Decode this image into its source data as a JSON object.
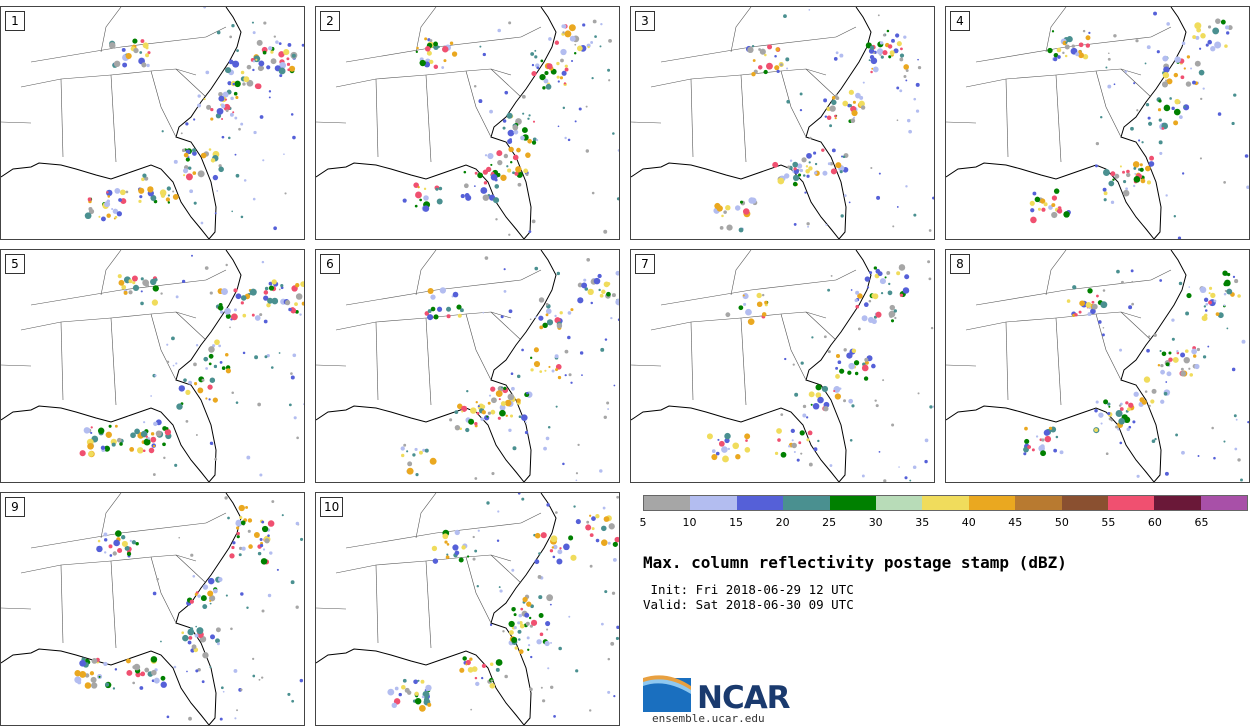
{
  "panels": [
    {
      "label": "1"
    },
    {
      "label": "2"
    },
    {
      "label": "3"
    },
    {
      "label": "4"
    },
    {
      "label": "5"
    },
    {
      "label": "6"
    },
    {
      "label": "7"
    },
    {
      "label": "8"
    },
    {
      "label": "9"
    },
    {
      "label": "10"
    }
  ],
  "colorbar": {
    "colors": [
      "#a6a6a6",
      "#b3bdf0",
      "#5560d8",
      "#4a9090",
      "#008000",
      "#b8dcb8",
      "#f0dc5c",
      "#eaa820",
      "#b87a30",
      "#8a5030",
      "#f05070",
      "#6a1838",
      "#a850a8"
    ],
    "ticks": [
      "5",
      "10",
      "15",
      "20",
      "25",
      "30",
      "35",
      "40",
      "45",
      "50",
      "55",
      "60",
      "65"
    ]
  },
  "title": "Max. column reflectivity postage stamp (dBZ)",
  "init": " Init: Fri 2018-06-29 12 UTC",
  "valid": "Valid: Sat 2018-06-30 09 UTC",
  "logo": {
    "name": "NCAR",
    "url": "ensemble.ucar.edu"
  }
}
